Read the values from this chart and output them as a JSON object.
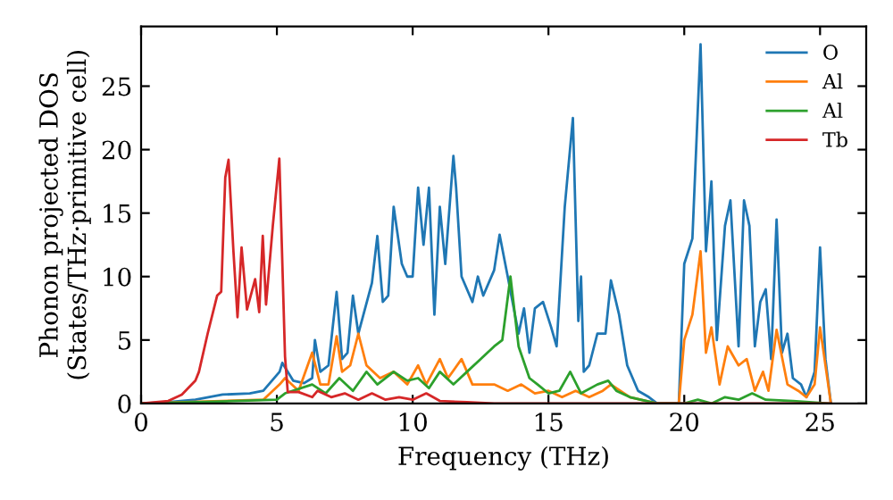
{
  "chart_data": {
    "type": "line",
    "xlabel": "Frequency (THz)",
    "ylabel": "Phonon projected DOS\n(States/THz·primitive cell)",
    "xlim": [
      0,
      26.7
    ],
    "ylim": [
      0,
      29.7
    ],
    "xticks": [
      0,
      5,
      10,
      15,
      20,
      25
    ],
    "yticks": [
      0,
      5,
      10,
      15,
      20,
      25
    ],
    "grid": false,
    "legend": "top right",
    "marker": "none",
    "line_style": "solid",
    "series": [
      {
        "name": "O",
        "color": "#1f77b4",
        "x": [
          0,
          1,
          2,
          3,
          4,
          4.5,
          5.1,
          5.2,
          5.6,
          6.0,
          6.3,
          6.4,
          6.6,
          6.9,
          7.2,
          7.4,
          7.6,
          7.8,
          8.0,
          8.5,
          8.7,
          8.9,
          9.1,
          9.3,
          9.6,
          9.8,
          10.0,
          10.2,
          10.4,
          10.6,
          10.8,
          11.0,
          11.2,
          11.5,
          11.6,
          11.8,
          12.2,
          12.4,
          12.6,
          13.0,
          13.2,
          13.5,
          13.9,
          14.1,
          14.3,
          14.5,
          14.8,
          15.1,
          15.3,
          15.6,
          15.9,
          16.1,
          16.2,
          16.3,
          16.5,
          16.8,
          17.1,
          17.3,
          17.6,
          17.9,
          18.3,
          18.7,
          19.0,
          19.8,
          20.0,
          20.3,
          20.6,
          20.8,
          21.0,
          21.2,
          21.5,
          21.7,
          22.0,
          22.2,
          22.4,
          22.6,
          22.8,
          23.0,
          23.2,
          23.4,
          23.6,
          23.8,
          24.0,
          24.3,
          24.5,
          24.8,
          25.0,
          25.2,
          25.4
        ],
        "values": [
          0,
          0.1,
          0.3,
          0.7,
          0.8,
          1.0,
          2.5,
          3.2,
          1.8,
          1.6,
          2.0,
          5,
          2.5,
          3,
          8.8,
          3.5,
          4,
          8.5,
          5.5,
          9.5,
          13.2,
          8,
          8.5,
          15.5,
          11,
          10,
          10,
          17,
          12.5,
          17,
          7,
          15.5,
          11,
          19.5,
          17,
          10,
          8,
          10,
          8.5,
          10.5,
          13.3,
          10,
          5.5,
          7.5,
          4,
          7.5,
          8,
          6,
          4.5,
          15.5,
          22.5,
          6.5,
          10,
          2.5,
          3,
          5.5,
          5.5,
          9.7,
          7,
          3,
          1,
          0.5,
          0,
          0,
          11,
          13,
          28.3,
          12,
          17.5,
          5,
          14,
          16,
          4.5,
          16,
          14,
          4.5,
          8,
          9,
          3.5,
          14.5,
          4,
          5.5,
          2,
          1.5,
          0.5,
          2.5,
          12.3,
          3.5,
          0
        ]
      },
      {
        "name": "Al",
        "color": "#ff7f0e",
        "x": [
          0,
          4.5,
          5.1,
          5.3,
          5.8,
          6.3,
          6.6,
          6.9,
          7.2,
          7.4,
          7.7,
          8.0,
          8.3,
          8.8,
          9.3,
          9.8,
          10.2,
          10.5,
          11.0,
          11.3,
          11.8,
          12.2,
          13.0,
          13.5,
          14.0,
          14.5,
          15.0,
          15.5,
          16.0,
          16.5,
          17.0,
          17.3,
          18.0,
          19.0,
          19.8,
          20.0,
          20.3,
          20.6,
          20.8,
          21.0,
          21.3,
          21.6,
          22.0,
          22.3,
          22.6,
          22.9,
          23.1,
          23.4,
          23.8,
          24.2,
          24.5,
          24.8,
          25.0,
          25.4
        ],
        "values": [
          0,
          0.3,
          1.5,
          2.0,
          1.0,
          4,
          1.5,
          1.5,
          5.3,
          2.5,
          3,
          5.5,
          3,
          2,
          2.5,
          1.5,
          3,
          1.5,
          3.5,
          2,
          3.5,
          1.5,
          1.5,
          1.0,
          1.5,
          0.8,
          1.0,
          0.5,
          1,
          0.5,
          1,
          1.5,
          0.5,
          0,
          0,
          5,
          7,
          12,
          4,
          6,
          1.5,
          4.5,
          3,
          3.5,
          1,
          2.5,
          1,
          5.8,
          1.5,
          1,
          0.5,
          1.5,
          6,
          0
        ]
      },
      {
        "name": "Al",
        "color": "#2ca02c",
        "x": [
          0,
          2,
          5.0,
          5.3,
          6.3,
          6.8,
          7.3,
          7.8,
          8.3,
          8.7,
          9.3,
          9.8,
          10.2,
          10.6,
          11.0,
          11.5,
          12.0,
          12.5,
          13.0,
          13.3,
          13.6,
          13.9,
          14.3,
          14.6,
          15.0,
          15.4,
          15.8,
          16.2,
          16.8,
          17.2,
          17.5,
          18.0,
          19.0,
          20.0,
          20.5,
          21.0,
          21.5,
          22.0,
          22.5,
          23.0,
          24.0,
          25.4
        ],
        "values": [
          0,
          0.1,
          0.3,
          0.8,
          1.5,
          0.8,
          2,
          1,
          2.5,
          1.5,
          2.5,
          1.8,
          2.0,
          1.2,
          2.5,
          1.5,
          2.5,
          3.5,
          4.5,
          5,
          10,
          4.5,
          2,
          1.5,
          0.8,
          1,
          2.5,
          0.8,
          1.5,
          1.8,
          1,
          0.5,
          0,
          0,
          0.3,
          0,
          0.5,
          0.3,
          0.8,
          0.3,
          0.2,
          0
        ]
      },
      {
        "name": "Tb",
        "color": "#d62728",
        "x": [
          0,
          1.0,
          1.5,
          2.0,
          2.13,
          2.45,
          2.8,
          2.95,
          3.1,
          3.22,
          3.4,
          3.55,
          3.7,
          3.9,
          4.2,
          4.35,
          4.48,
          4.6,
          4.85,
          5.09,
          5.3,
          5.4,
          5.8,
          6.3,
          6.5,
          7.0,
          7.5,
          8.0,
          8.5,
          9.0,
          9.5,
          10.0,
          10.5,
          11.0,
          12.0,
          13.0,
          25.4
        ],
        "values": [
          0,
          0.2,
          0.7,
          1.8,
          2.5,
          5.5,
          8.5,
          8.8,
          17.8,
          19.2,
          12,
          6.8,
          12.3,
          7.4,
          9.8,
          7.2,
          13.2,
          7.8,
          14,
          19.3,
          3.7,
          0.9,
          0.9,
          0.5,
          1.0,
          0.5,
          0.8,
          0.3,
          0.8,
          0.3,
          0.5,
          0.3,
          0.8,
          0.2,
          0.1,
          0,
          0
        ]
      }
    ]
  }
}
